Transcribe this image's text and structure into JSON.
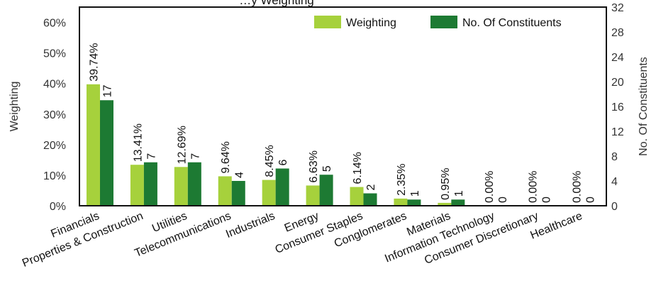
{
  "chart_data": {
    "type": "bar",
    "title": "…y Weighting",
    "categories": [
      "Financials",
      "Properties & Construction",
      "Utilities",
      "Telecommunications",
      "Industrials",
      "Energy",
      "Consumer Staples",
      "Conglomerates",
      "Materials",
      "Information Technology",
      "Consumer Discretionary",
      "Healthcare"
    ],
    "series": [
      {
        "name": "Weighting",
        "axis": "left",
        "color": "#a6d13c",
        "values": [
          39.74,
          13.41,
          12.69,
          9.64,
          8.45,
          6.63,
          6.14,
          2.35,
          0.95,
          0.0,
          0.0,
          0.0
        ],
        "labels": [
          "39.74%",
          "13.41%",
          "12.69%",
          "9.64%",
          "8.45%",
          "6.63%",
          "6.14%",
          "2.35%",
          "0.95%",
          "0.00%",
          "0.00%",
          "0.00%"
        ]
      },
      {
        "name": "No. Of Constituents",
        "axis": "right",
        "color": "#1d7a33",
        "values": [
          17,
          7,
          7,
          4,
          6,
          5,
          2,
          1,
          1,
          0,
          0,
          0
        ],
        "labels": [
          "17",
          "7",
          "7",
          "4",
          "6",
          "5",
          "2",
          "1",
          "1",
          "0",
          "0",
          "0"
        ]
      }
    ],
    "ylabel": "Weighting",
    "ylabel_right": "No. Of Constituents",
    "ylim": [
      0,
      65
    ],
    "ylim_right": [
      0,
      32
    ],
    "yticks": [
      "0%",
      "10%",
      "20%",
      "30%",
      "40%",
      "50%",
      "60%"
    ],
    "yticks_right": [
      "0",
      "4",
      "8",
      "12",
      "16",
      "20",
      "24",
      "28",
      "32"
    ],
    "grid": false,
    "legend_position": "top-right"
  }
}
